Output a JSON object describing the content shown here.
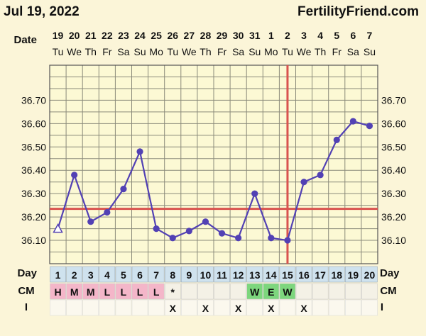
{
  "header": {
    "date": "Jul 19, 2022",
    "brand": "FertilityFriend.com"
  },
  "row_labels": {
    "date": "Date",
    "day": "Day",
    "cm": "CM",
    "i": "I"
  },
  "chart_data": {
    "type": "line",
    "x": [
      "19",
      "20",
      "21",
      "22",
      "23",
      "24",
      "25",
      "26",
      "27",
      "28",
      "29",
      "30",
      "31",
      "1",
      "2",
      "3",
      "4",
      "5",
      "6",
      "7"
    ],
    "weekdays": [
      "Tu",
      "We",
      "Th",
      "Fr",
      "Sa",
      "Su",
      "Mo",
      "Tu",
      "We",
      "Th",
      "Fr",
      "Sa",
      "Su",
      "Mo",
      "Tu",
      "We",
      "Th",
      "Fr",
      "Sa",
      "Su"
    ],
    "days": [
      1,
      2,
      3,
      4,
      5,
      6,
      7,
      8,
      9,
      10,
      11,
      12,
      13,
      14,
      15,
      16,
      17,
      18,
      19,
      20
    ],
    "series": [
      {
        "values": [
          36.15,
          36.38,
          36.18,
          36.22,
          36.32,
          36.48,
          36.15,
          36.11,
          36.14,
          36.18,
          36.13,
          36.11,
          36.3,
          36.11,
          36.1,
          36.35,
          36.38,
          36.53,
          36.61,
          36.59
        ]
      }
    ],
    "ylim": [
      36.0,
      36.85
    ],
    "yticks": [
      "36.70",
      "36.60",
      "36.50",
      "36.40",
      "36.30",
      "36.20",
      "36.10"
    ],
    "coverline": 36.235,
    "ovulation_day": 15,
    "cm": [
      "H",
      "M",
      "M",
      "L",
      "L",
      "L",
      "L",
      "*",
      "",
      "",
      "",
      "",
      "W",
      "E",
      "W",
      "",
      "",
      "",
      "",
      ""
    ],
    "i": [
      "",
      "",
      "",
      "",
      "",
      "",
      "",
      "X",
      "",
      "X",
      "",
      "X",
      "",
      "X",
      "",
      "X",
      "",
      "",
      "",
      ""
    ],
    "colors": {
      "line": "#5241b4",
      "coverline": "#d9534f",
      "grid": "#8a8a7a",
      "plot_bg": "#fcf9d4",
      "day_box": "#cfe2ee",
      "cm_pink": "#f4b6c9",
      "cm_green": "#7dd67d",
      "cm_empty": "#f4f1e6"
    }
  }
}
